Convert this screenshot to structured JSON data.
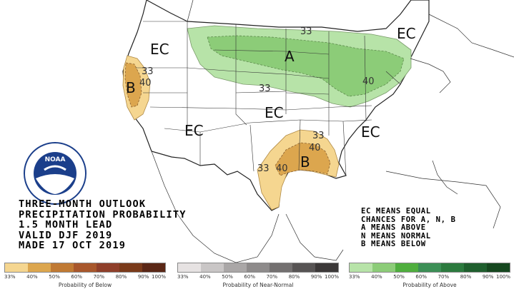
{
  "title_lines": [
    "THREE-MONTH OUTLOOK",
    "PRECIPITATION PROBABILITY",
    "1.5 MONTH LEAD",
    "VALID DJF 2019",
    "MADE 17 OCT 2019"
  ],
  "key_lines": [
    "EC MEANS EQUAL",
    "CHANCES FOR A, N, B",
    "A MEANS ABOVE",
    "N MEANS NORMAL",
    "B MEANS BELOW"
  ],
  "map_labels": {
    "ec_nw": "EC",
    "ec_ne": "EC",
    "ec_central": "EC",
    "ec_sw": "EC",
    "ec_se": "EC",
    "a_label": "A",
    "b_west": "B",
    "b_south": "B",
    "c33_north": "33",
    "c33_central": "33",
    "c33_west": "33",
    "c40_west": "40",
    "c40_east": "40",
    "c33_south_w": "33",
    "c40_south_w": "40",
    "c33_south_n": "33",
    "c40_south_n": "40",
    "c33_ne_top": "33"
  },
  "noaa_logo_text": "NOAA",
  "legend_below": {
    "caption": "Probability of Below",
    "ticks": [
      "33%",
      "40%",
      "50%",
      "60%",
      "70%",
      "80%",
      "90%",
      "100%"
    ],
    "colors": [
      "#f5d690",
      "#dca64e",
      "#c07a34",
      "#a8572c",
      "#8f3f2a",
      "#7a3a1a",
      "#5a2716"
    ]
  },
  "legend_normal": {
    "caption": "Probability of Near-Normal",
    "ticks": [
      "33%",
      "40%",
      "50%",
      "60%",
      "70%",
      "80%",
      "90%",
      "100%"
    ],
    "colors": [
      "#e6e2e2",
      "#c9c6c6",
      "#aaa7a7",
      "#8e8b8b",
      "#737070",
      "#575454",
      "#3b3838"
    ]
  },
  "legend_above": {
    "caption": "Probability of Above",
    "ticks": [
      "33%",
      "40%",
      "50%",
      "60%",
      "70%",
      "80%",
      "90%",
      "100%"
    ],
    "colors": [
      "#b7e3a8",
      "#8ccc78",
      "#4fae3e",
      "#3c8f56",
      "#2c7a3e",
      "#1f5f2e",
      "#16471f"
    ]
  }
}
